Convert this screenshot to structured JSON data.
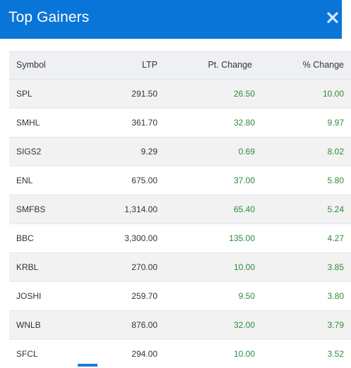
{
  "modal": {
    "title": "Top Gainers",
    "close_icon": "close-icon",
    "accent_color": "#0a75d8",
    "positive_color": "#2e8b3a"
  },
  "table": {
    "headers": {
      "symbol": "Symbol",
      "ltp": "LTP",
      "pt_change": "Pt. Change",
      "pct_change": "% Change"
    },
    "rows": [
      {
        "symbol": "SPL",
        "ltp": "291.50",
        "pt_change": "26.50",
        "pct_change": "10.00"
      },
      {
        "symbol": "SMHL",
        "ltp": "361.70",
        "pt_change": "32.80",
        "pct_change": "9.97"
      },
      {
        "symbol": "SIGS2",
        "ltp": "9.29",
        "pt_change": "0.69",
        "pct_change": "8.02"
      },
      {
        "symbol": "ENL",
        "ltp": "675.00",
        "pt_change": "37.00",
        "pct_change": "5.80"
      },
      {
        "symbol": "SMFBS",
        "ltp": "1,314.00",
        "pt_change": "65.40",
        "pct_change": "5.24"
      },
      {
        "symbol": "BBC",
        "ltp": "3,300.00",
        "pt_change": "135.00",
        "pct_change": "4.27"
      },
      {
        "symbol": "KRBL",
        "ltp": "270.00",
        "pt_change": "10.00",
        "pct_change": "3.85"
      },
      {
        "symbol": "JOSHI",
        "ltp": "259.70",
        "pt_change": "9.50",
        "pct_change": "3.80"
      },
      {
        "symbol": "WNLB",
        "ltp": "876.00",
        "pt_change": "32.00",
        "pct_change": "3.79"
      },
      {
        "symbol": "SFCL",
        "ltp": "294.00",
        "pt_change": "10.00",
        "pct_change": "3.52"
      }
    ]
  }
}
